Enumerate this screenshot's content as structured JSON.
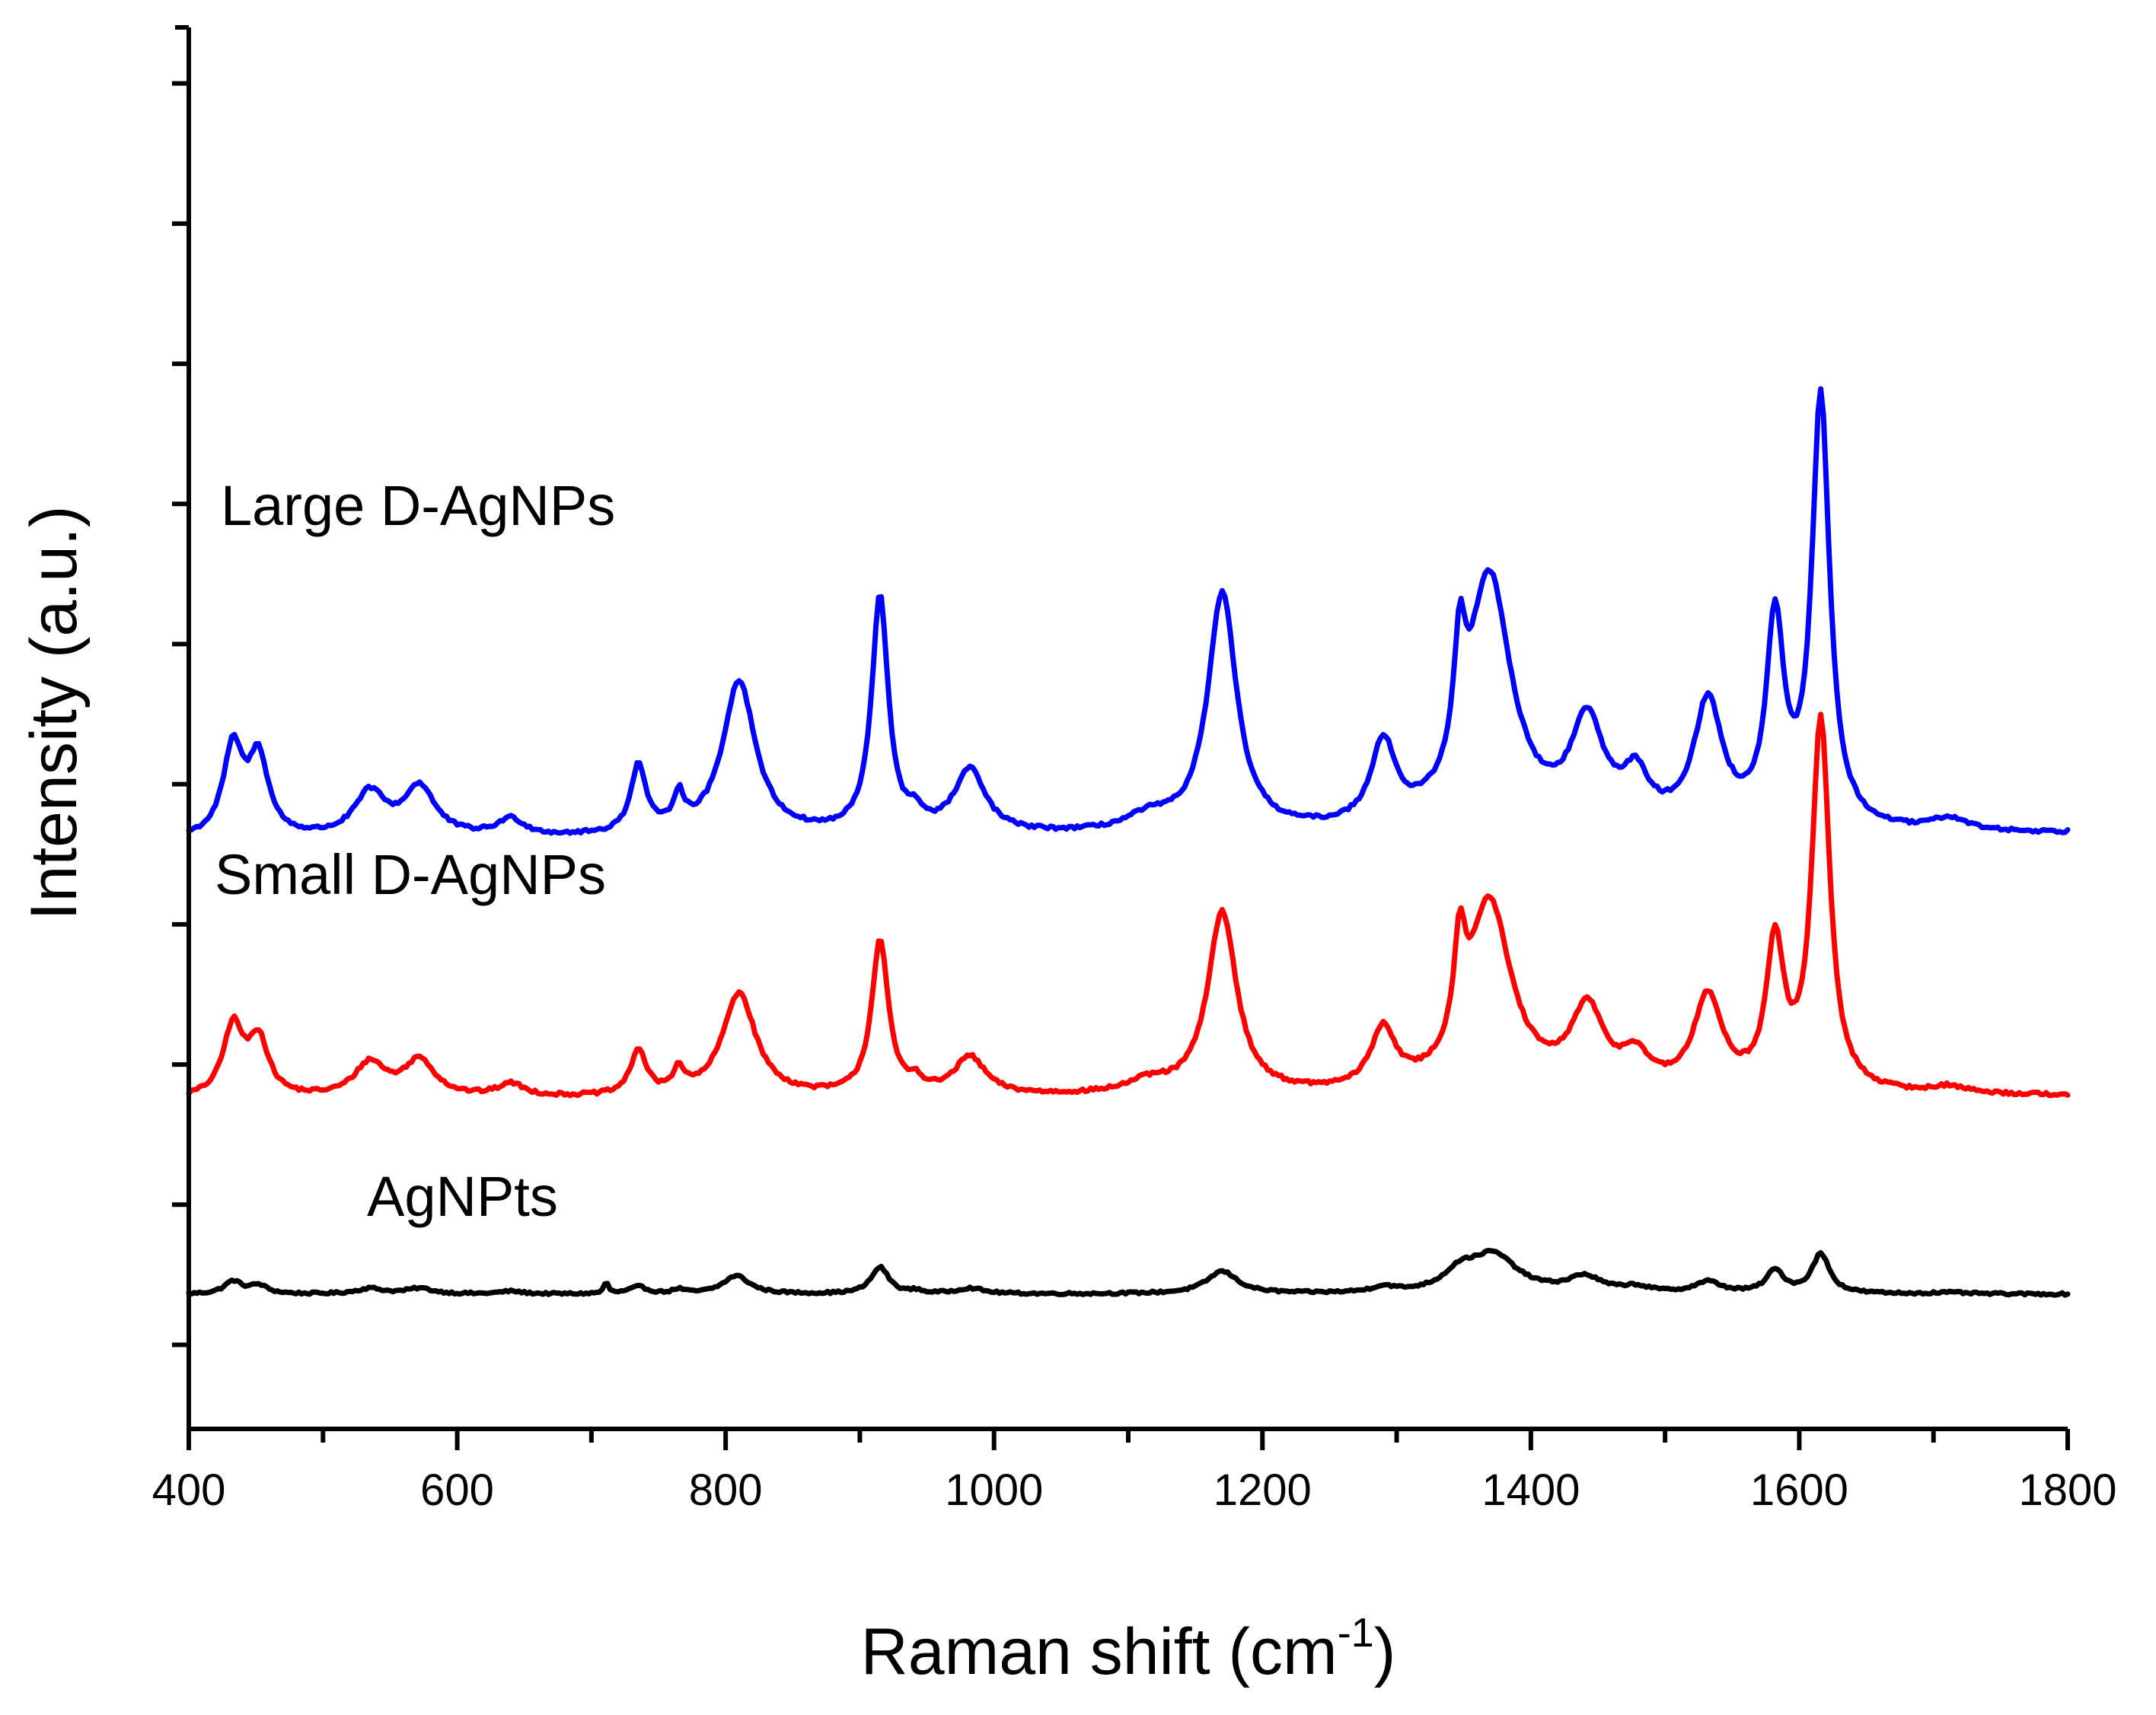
{
  "chart_data": {
    "type": "line",
    "title": "",
    "xlabel": "Raman shift (cm",
    "xlabel_superscript": "-1",
    "xlabel_suffix": ")",
    "ylabel": "Intensity (a.u.)",
    "xlim": [
      400,
      1800
    ],
    "ylim": [
      0,
      100
    ],
    "x_ticks": [
      400,
      600,
      800,
      1000,
      1200,
      1400,
      1600,
      1800
    ],
    "x_minor_step": 100,
    "y_ticks": [
      6,
      16,
      26,
      36,
      46,
      56,
      66,
      76,
      86,
      96
    ],
    "y_tick_labels_visible": false,
    "grid": false,
    "legend": "none",
    "series": [
      {
        "name": "AgNPts",
        "color": "#000000",
        "baseline": 9.6,
        "tail": 0.0,
        "noise": 0.08,
        "peaks": [
          [
            433,
            8,
            0.9
          ],
          [
            452,
            8,
            0.6
          ],
          [
            535,
            12,
            0.4
          ],
          [
            572,
            12,
            0.4
          ],
          [
            640,
            10,
            0.2
          ],
          [
            711,
            2,
            0.8
          ],
          [
            735,
            8,
            0.5
          ],
          [
            765,
            5,
            0.3
          ],
          [
            808,
            12,
            1.3
          ],
          [
            915,
            8,
            1.9
          ],
          [
            942,
            5,
            0.2
          ],
          [
            982,
            12,
            0.4
          ],
          [
            1170,
            14,
            1.6
          ],
          [
            1290,
            10,
            0.4
          ],
          [
            1347,
            14,
            1.2
          ],
          [
            1372,
            22,
            2.7
          ],
          [
            1440,
            15,
            1.1
          ],
          [
            1478,
            12,
            0.4
          ],
          [
            1532,
            12,
            0.8
          ],
          [
            1582,
            8,
            1.6
          ],
          [
            1616,
            8,
            2.8
          ],
          [
            1712,
            15,
            0.1
          ]
        ],
        "label": "AgNPts"
      },
      {
        "name": "Small D-AgNPs",
        "color": "#ff0000",
        "baseline": 23.5,
        "tail": 0.8,
        "noise": 0.12,
        "peaks": [
          [
            433,
            9,
            5.0
          ],
          [
            452,
            9,
            4.0
          ],
          [
            535,
            14,
            2.4
          ],
          [
            572,
            14,
            2.6
          ],
          [
            640,
            12,
            0.9
          ],
          [
            735,
            7,
            3.2
          ],
          [
            765,
            5,
            1.6
          ],
          [
            810,
            15,
            7.4
          ],
          [
            915,
            7.5,
            11.0
          ],
          [
            942,
            6,
            0.8
          ],
          [
            982,
            14,
            2.7
          ],
          [
            1115,
            20,
            0.8
          ],
          [
            1170,
            13,
            13.0
          ],
          [
            1290,
            11,
            4.2
          ],
          [
            1347,
            5,
            7.0
          ],
          [
            1369,
            20,
            13.5
          ],
          [
            1442,
            15,
            5.6
          ],
          [
            1478,
            12,
            2.2
          ],
          [
            1532,
            13,
            6.6
          ],
          [
            1582,
            8,
            10.2
          ],
          [
            1616,
            8,
            26.5
          ],
          [
            1712,
            15,
            0.5
          ]
        ],
        "label": "Small D-AgNPs"
      },
      {
        "name": "Large D-AgNPs",
        "color": "#0000ff",
        "baseline": 42.0,
        "tail": 1.5,
        "noise": 0.12,
        "peaks": [
          [
            433,
            9,
            6.3
          ],
          [
            452,
            9,
            5.5
          ],
          [
            535,
            14,
            3.1
          ],
          [
            572,
            14,
            3.5
          ],
          [
            640,
            12,
            1.2
          ],
          [
            735,
            7,
            4.8
          ],
          [
            765,
            5,
            2.3
          ],
          [
            810,
            15,
            11.0
          ],
          [
            915,
            7.5,
            16.8
          ],
          [
            942,
            6,
            1.0
          ],
          [
            982,
            14,
            4.5
          ],
          [
            1115,
            20,
            1.0
          ],
          [
            1170,
            13,
            17.0
          ],
          [
            1290,
            11,
            5.8
          ],
          [
            1347,
            5,
            8.0
          ],
          [
            1369,
            20,
            18.0
          ],
          [
            1442,
            15,
            7.2
          ],
          [
            1478,
            12,
            3.2
          ],
          [
            1532,
            13,
            8.8
          ],
          [
            1582,
            8,
            14.3
          ],
          [
            1616,
            8,
            30.6
          ],
          [
            1712,
            15,
            0.9
          ]
        ],
        "label": "Large D-AgNPs"
      }
    ]
  }
}
